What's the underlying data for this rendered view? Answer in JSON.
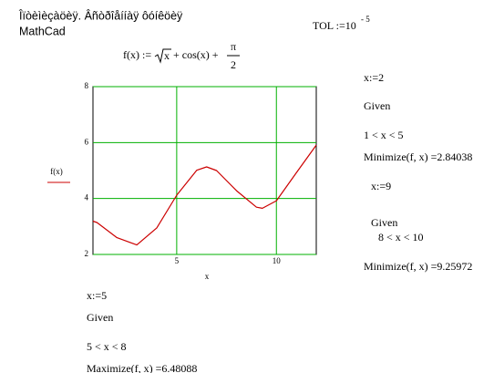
{
  "header": {
    "title": "Îïòèìèçàöèÿ. Âñòðîåííàÿ ôóíêöèÿ",
    "app": "MathCad"
  },
  "tol": {
    "text": "TOL :=10",
    "exponent": "- 5"
  },
  "formula": {
    "lhs": "f(x) :=",
    "radicand": "x",
    "middle": "+ cos(x) +",
    "numerator": "π",
    "denominator": "2"
  },
  "chart_data": {
    "type": "line",
    "xlabel": "x",
    "ylabel": "f(x)",
    "x": [
      0.8,
      1,
      2,
      3,
      4,
      5,
      6,
      6.5,
      7,
      8,
      9,
      9.3,
      10,
      11,
      12
    ],
    "values": [
      3.19,
      3.14,
      2.6,
      2.34,
      2.95,
      4.12,
      5.01,
      5.13,
      5.0,
      4.28,
      3.69,
      3.65,
      3.92,
      4.92,
      5.91
    ],
    "color": "#cc0000",
    "grid": true,
    "grid_color": "#00b000",
    "xlim": [
      0.8,
      12
    ],
    "ylim": [
      2,
      8
    ],
    "xticks": [
      5,
      10
    ],
    "yticks": [
      2,
      4,
      6,
      8
    ]
  },
  "blocks": [
    "x:=2",
    "Given",
    "1 < x < 5",
    "Minimize(f, x) =2.84038",
    "x:=9",
    "Given",
    "8 < x < 10",
    "Minimize(f, x) =9.25972",
    "x:=5",
    "Given",
    "5 < x < 8",
    "Maximize(f, x) =6.48088"
  ]
}
